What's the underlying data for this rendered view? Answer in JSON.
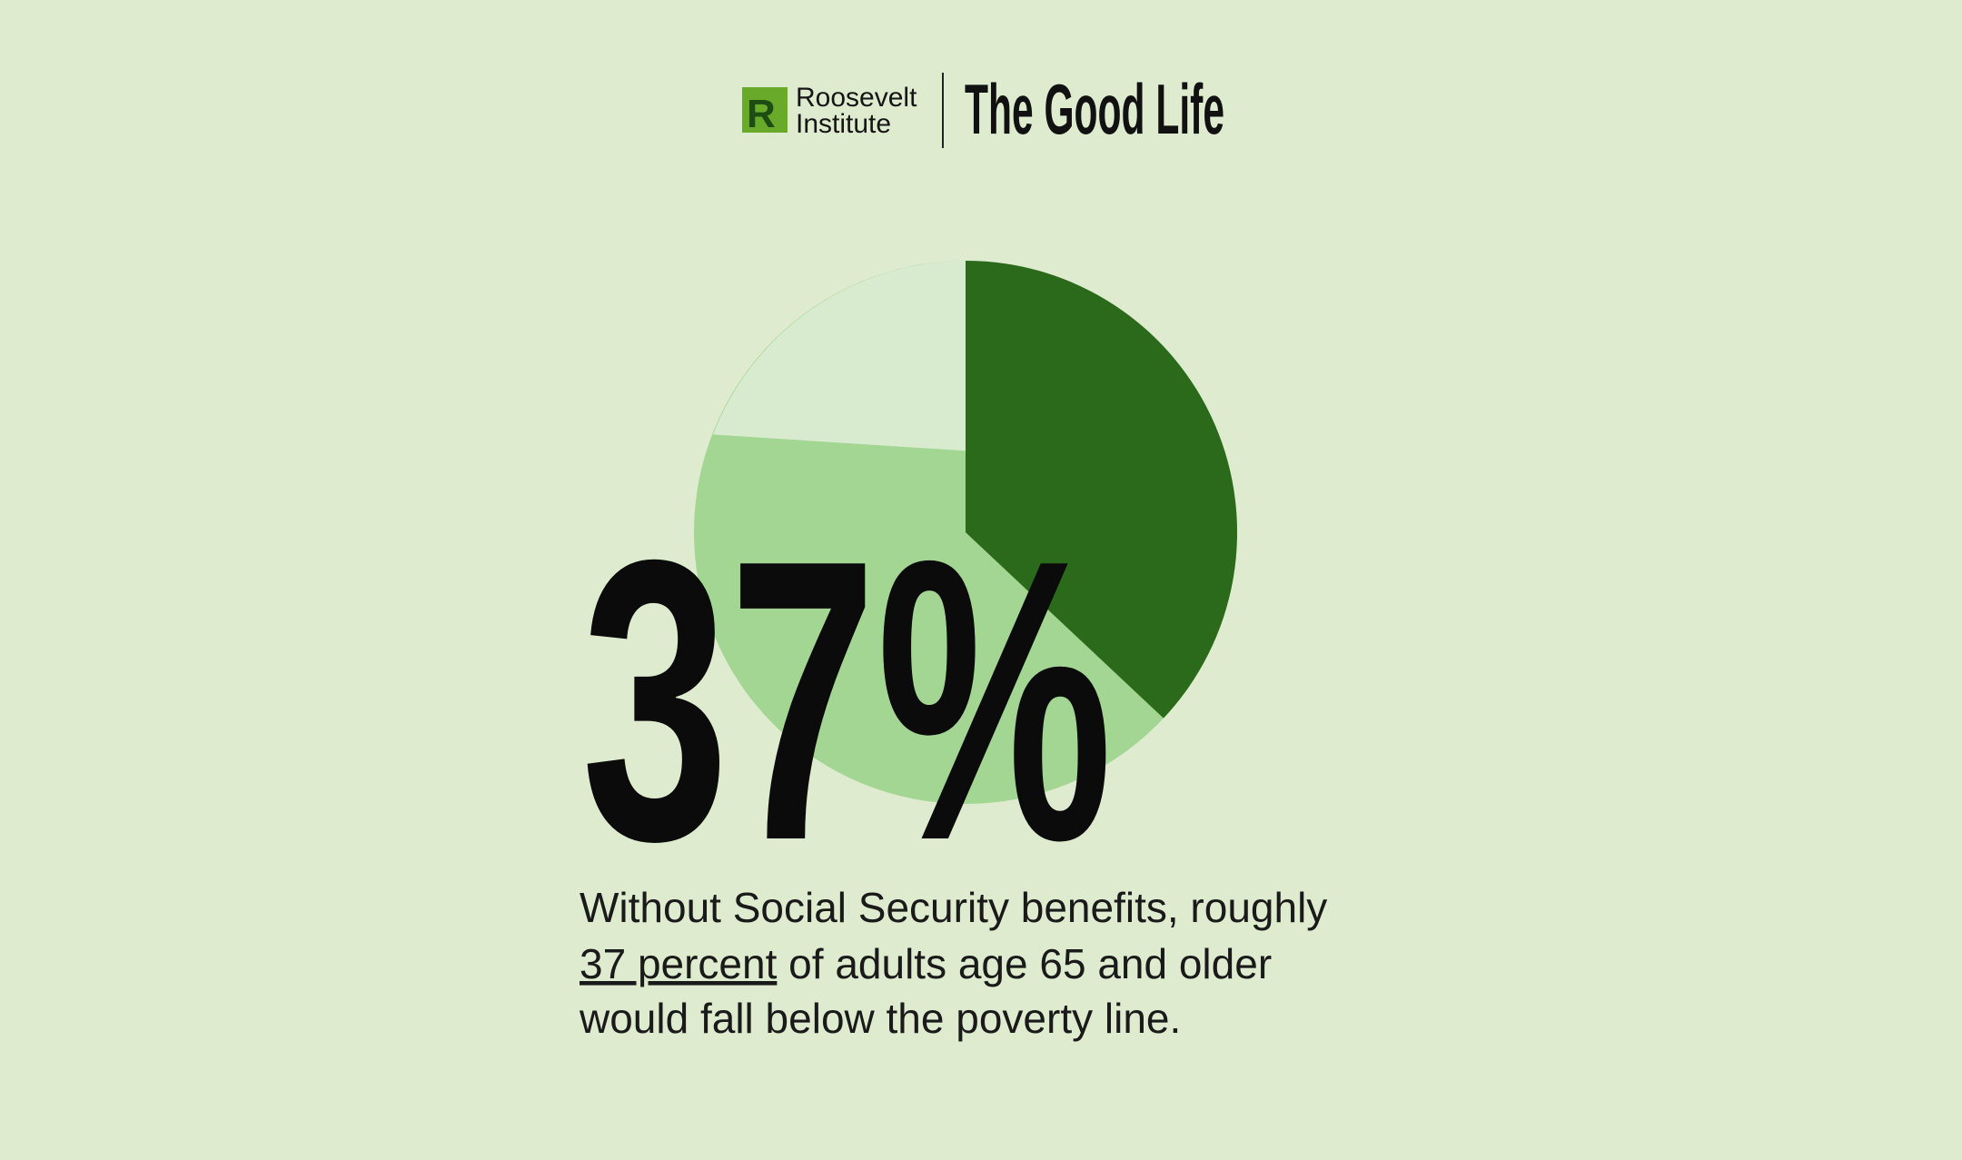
{
  "header": {
    "org_line1": "Roosevelt",
    "org_line2": "Institute",
    "series_title": "The Good Life"
  },
  "chart_data": {
    "type": "pie",
    "values": [
      37
    ],
    "value_labels": [
      "37%"
    ],
    "color": "#2b6a1b",
    "rest_color": "#a3d593"
  },
  "caption": {
    "before": "Without Social Security benefits, roughly",
    "link": "37 percent",
    "after_line1": " of adults age 65 and older",
    "line3": "would fall below the poverty line."
  }
}
